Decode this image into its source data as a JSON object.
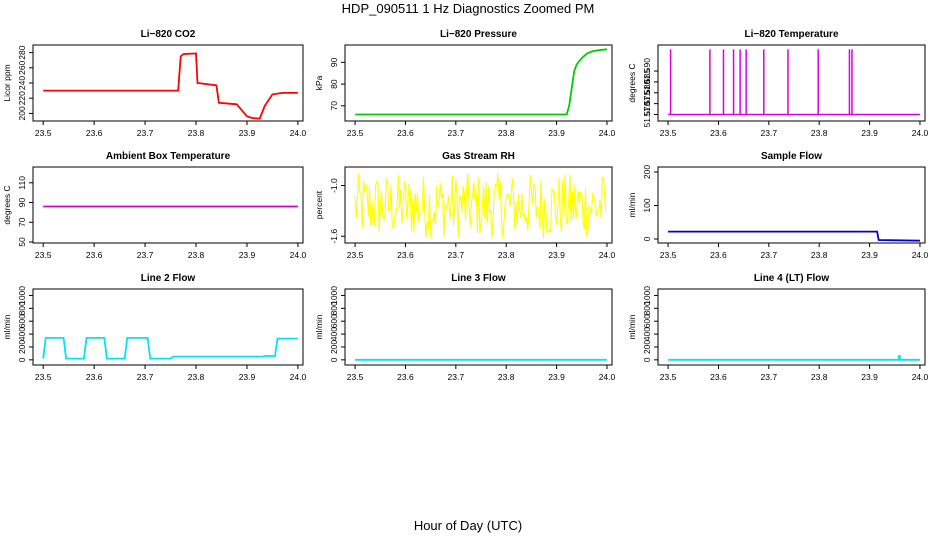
{
  "figure": {
    "title": "HDP_090511  1 Hz Diagnostics Zoomed PM",
    "xlabel": "Hour of Day (UTC)"
  },
  "chart_data": [
    {
      "type": "line",
      "title": "Li−820 CO2",
      "ylabel": "Licor ppm",
      "color": "#ff0000",
      "xlim": [
        23.48,
        24.01
      ],
      "ylim": [
        190,
        290
      ],
      "xticks": [
        "23.5",
        "23.6",
        "23.7",
        "23.8",
        "23.9",
        "24.0"
      ],
      "yticks": [
        "200",
        "220",
        "240",
        "260",
        "280"
      ],
      "x": [
        23.5,
        23.765,
        23.77,
        23.775,
        23.8,
        23.803,
        23.84,
        23.845,
        23.88,
        23.885,
        23.9,
        23.91,
        23.925,
        23.935,
        23.95,
        23.97,
        24.0
      ],
      "y": [
        230,
        230,
        275,
        278,
        279,
        240,
        237,
        214,
        212,
        208,
        196,
        194,
        193,
        210,
        225,
        227,
        227
      ]
    },
    {
      "type": "line",
      "title": "Li−820 Pressure",
      "ylabel": "kPa",
      "color": "#00cc00",
      "xlim": [
        23.48,
        24.01
      ],
      "ylim": [
        63,
        98
      ],
      "xticks": [
        "23.5",
        "23.6",
        "23.7",
        "23.8",
        "23.9",
        "24.0"
      ],
      "yticks": [
        "70",
        "80",
        "90"
      ],
      "x": [
        23.5,
        23.92,
        23.925,
        23.93,
        23.935,
        23.94,
        23.95,
        23.96,
        23.97,
        23.98,
        24.0
      ],
      "y": [
        66,
        66,
        70,
        78,
        86,
        89,
        92,
        94,
        95,
        95.5,
        96
      ]
    },
    {
      "type": "spikes",
      "title": "Li−820 Temperature",
      "ylabel": "degrees C",
      "color": "#dd00dd",
      "xlim": [
        23.48,
        24.01
      ],
      "ylim": [
        51.567,
        51.602
      ],
      "xticks": [
        "23.5",
        "23.6",
        "23.7",
        "23.8",
        "23.9",
        "24.0"
      ],
      "yticks": [
        "51.570",
        "51.575",
        "51.580",
        "51.585",
        "51.590"
      ],
      "baseline": 51.57,
      "peak": 51.6,
      "spike_x": [
        23.505,
        23.583,
        23.61,
        23.63,
        23.643,
        23.655,
        23.69,
        23.738,
        23.798,
        23.86,
        23.865
      ]
    },
    {
      "type": "line",
      "title": "Ambient Box Temperature",
      "ylabel": "degrees C",
      "color": "#cc00cc",
      "xlim": [
        23.48,
        24.01
      ],
      "ylim": [
        49,
        126
      ],
      "xticks": [
        "23.5",
        "23.6",
        "23.7",
        "23.8",
        "23.9",
        "24.0"
      ],
      "yticks": [
        "50",
        "70",
        "90",
        "110"
      ],
      "x": [
        23.5,
        24.0
      ],
      "y": [
        86,
        86
      ]
    },
    {
      "type": "noise",
      "title": "Gas Stream RH",
      "ylabel": "percent",
      "color": "#ffff00",
      "xlim": [
        23.48,
        24.01
      ],
      "ylim": [
        -1.68,
        -0.78
      ],
      "xticks": [
        "23.5",
        "23.6",
        "23.7",
        "23.8",
        "23.9",
        "24.0"
      ],
      "yticks": [
        "-1.6",
        "-1.0"
      ],
      "x_range": [
        23.5,
        24.0
      ],
      "center": -1.28,
      "y_min": -1.63,
      "y_max": -0.85
    },
    {
      "type": "line",
      "title": "Sample Flow",
      "ylabel": "ml/min",
      "color": "#0000cc",
      "xlim": [
        23.48,
        24.01
      ],
      "ylim": [
        -12,
        215
      ],
      "xticks": [
        "23.5",
        "23.6",
        "23.7",
        "23.8",
        "23.9",
        "24.0"
      ],
      "yticks": [
        "0",
        "100",
        "200"
      ],
      "x": [
        23.5,
        23.915,
        23.918,
        24.0
      ],
      "y": [
        22,
        22,
        -3,
        -5
      ]
    },
    {
      "type": "line",
      "title": "Line 2 Flow",
      "ylabel": "ml/min",
      "color": "#00e5ee",
      "xlim": [
        23.48,
        24.01
      ],
      "ylim": [
        -80,
        1100
      ],
      "xticks": [
        "23.5",
        "23.6",
        "23.7",
        "23.8",
        "23.9",
        "24.0"
      ],
      "yticks": [
        "0",
        "200",
        "400",
        "600",
        "800",
        "1000"
      ],
      "x": [
        23.5,
        23.505,
        23.54,
        23.545,
        23.58,
        23.585,
        23.62,
        23.625,
        23.66,
        23.665,
        23.705,
        23.71,
        23.75,
        23.755,
        23.93,
        23.935,
        23.955,
        23.96,
        24.0
      ],
      "y": [
        20,
        340,
        340,
        20,
        20,
        340,
        340,
        20,
        20,
        340,
        340,
        20,
        20,
        50,
        50,
        60,
        60,
        330,
        330
      ]
    },
    {
      "type": "line",
      "title": "Line 3 Flow",
      "ylabel": "ml/min",
      "color": "#00e5ee",
      "xlim": [
        23.48,
        24.01
      ],
      "ylim": [
        -80,
        1100
      ],
      "xticks": [
        "23.5",
        "23.6",
        "23.7",
        "23.8",
        "23.9",
        "24.0"
      ],
      "yticks": [
        "0",
        "200",
        "400",
        "600",
        "800",
        "1000"
      ],
      "x": [
        23.5,
        24.0
      ],
      "y": [
        0,
        0
      ]
    },
    {
      "type": "line",
      "title": "Line 4 (LT) Flow",
      "ylabel": "ml/min",
      "color": "#00e5ee",
      "xlim": [
        23.48,
        24.01
      ],
      "ylim": [
        -80,
        1100
      ],
      "xticks": [
        "23.5",
        "23.6",
        "23.7",
        "23.8",
        "23.9",
        "24.0"
      ],
      "yticks": [
        "0",
        "200",
        "400",
        "600",
        "800",
        "1000"
      ],
      "x": [
        23.5,
        23.958,
        23.958,
        23.96,
        23.96,
        24.0
      ],
      "y": [
        0,
        0,
        60,
        60,
        0,
        0
      ]
    }
  ]
}
